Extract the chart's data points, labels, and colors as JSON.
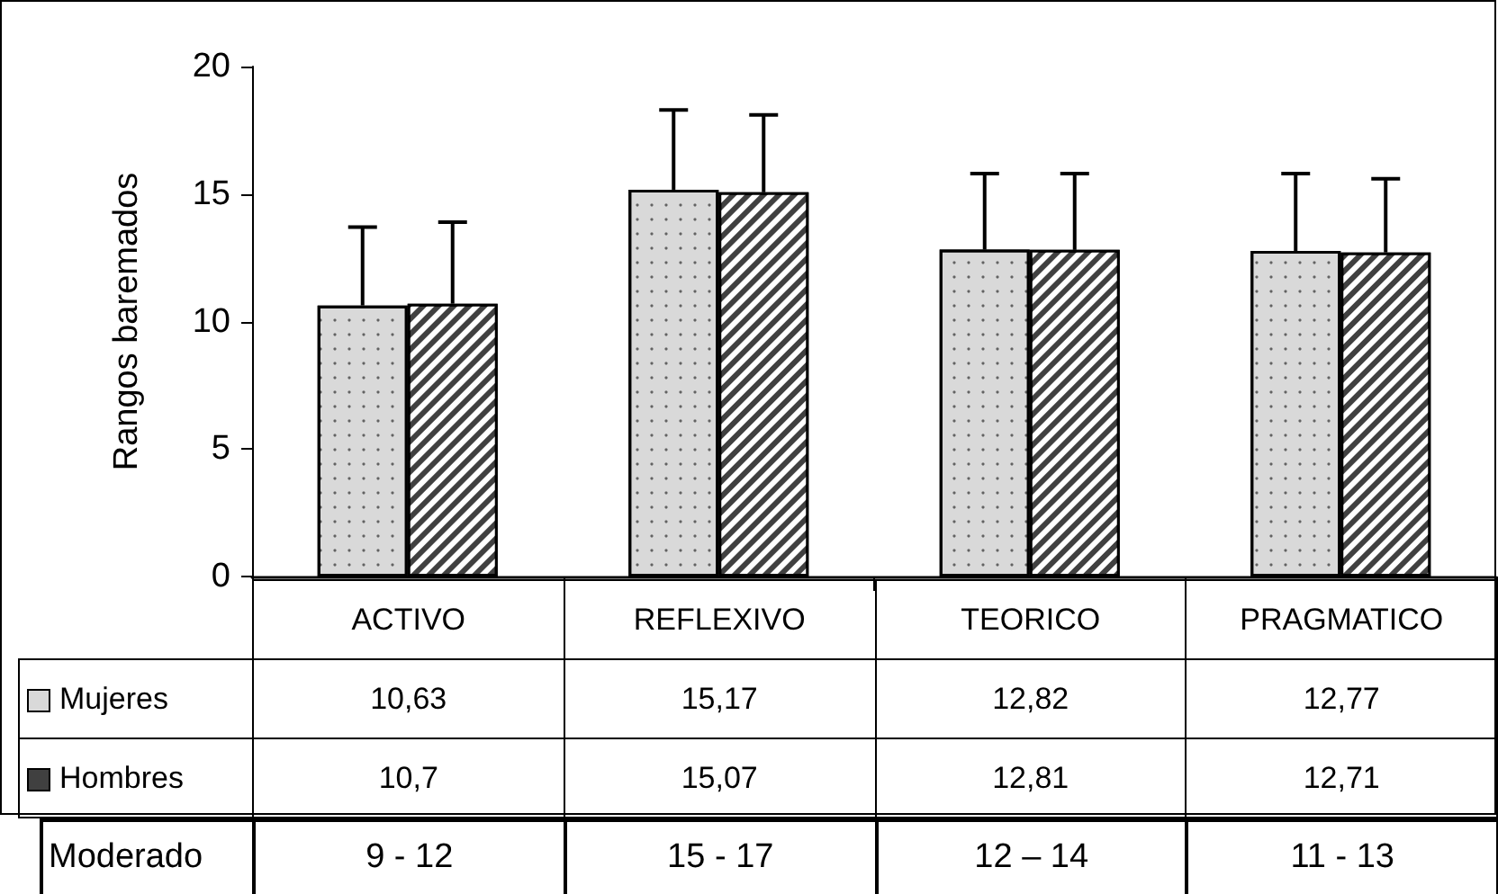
{
  "chart_data": {
    "type": "bar",
    "ylabel": "Rangos baremados",
    "categories": [
      "ACTIVO",
      "REFLEXIVO",
      "TEORICO",
      "PRAGMATICO"
    ],
    "series": [
      {
        "name": "Mujeres",
        "color": "#d9d9d9",
        "values": [
          10.63,
          15.17,
          12.82,
          12.77
        ],
        "value_labels": [
          "10,63",
          "15,17",
          "12,82",
          "12,77"
        ],
        "errors": [
          [
            10.63,
            13.7
          ],
          [
            15.17,
            18.3
          ],
          [
            12.82,
            15.8
          ],
          [
            12.77,
            15.8
          ]
        ]
      },
      {
        "name": "Hombres",
        "color": "#404040",
        "values": [
          10.7,
          15.07,
          12.81,
          12.71
        ],
        "value_labels": [
          "10,7",
          "15,07",
          "12,81",
          "12,71"
        ],
        "errors": [
          [
            10.7,
            13.9
          ],
          [
            15.07,
            18.1
          ],
          [
            12.81,
            15.8
          ],
          [
            12.71,
            15.6
          ]
        ]
      }
    ],
    "ylim": [
      0,
      20
    ],
    "yticks": [
      0,
      5,
      10,
      15,
      20
    ],
    "grid": false,
    "legend": "bottom",
    "annotations": [
      "Moderado",
      "9 - 12",
      "15 - 17",
      "12 – 14",
      "11 - 13"
    ]
  }
}
